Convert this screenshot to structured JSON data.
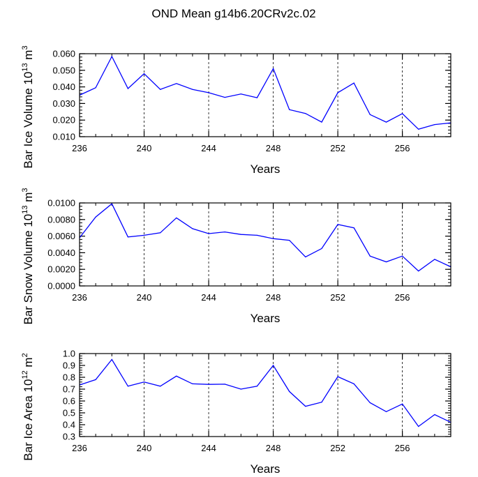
{
  "title": "OND Mean g14b6.20CRv2c.02",
  "chart_data": [
    {
      "type": "line",
      "ylabel_main": "Bar Ice Volume 10",
      "ylabel_exp": "13",
      "ylabel_unit": " m",
      "ylabel_unit_exp": "3",
      "xlabel": "Years",
      "xlim": [
        236,
        259
      ],
      "ylim": [
        0.01,
        0.06
      ],
      "yticks": [
        0.01,
        0.02,
        0.03,
        0.04,
        0.05,
        0.06
      ],
      "ytick_labels": [
        "0.010",
        "0.020",
        "0.030",
        "0.040",
        "0.050",
        "0.060"
      ],
      "xticks": [
        236,
        240,
        244,
        248,
        252,
        256
      ],
      "xtick_labels": [
        "236",
        "240",
        "244",
        "248",
        "252",
        "256"
      ],
      "gridlines_x": [
        240,
        244,
        248,
        252,
        256
      ],
      "series": [
        {
          "name": "Bar Ice Volume",
          "color": "#0000ff",
          "x": [
            236,
            237,
            238,
            239,
            240,
            241,
            242,
            243,
            244,
            245,
            246,
            247,
            248,
            249,
            250,
            251,
            252,
            253,
            254,
            255,
            256,
            257,
            258,
            259
          ],
          "values": [
            0.035,
            0.0395,
            0.0583,
            0.039,
            0.048,
            0.0385,
            0.042,
            0.0385,
            0.0365,
            0.0337,
            0.0357,
            0.0335,
            0.051,
            0.0263,
            0.024,
            0.0188,
            0.0365,
            0.0423,
            0.0233,
            0.0188,
            0.0239,
            0.0145,
            0.0173,
            0.0183
          ]
        }
      ]
    },
    {
      "type": "line",
      "ylabel_main": "Bar Snow Volume 10",
      "ylabel_exp": "13",
      "ylabel_unit": " m",
      "ylabel_unit_exp": "3",
      "xlabel": "Years",
      "xlim": [
        236,
        259
      ],
      "ylim": [
        0.0,
        0.01
      ],
      "yticks": [
        0.0,
        0.002,
        0.004,
        0.006,
        0.008,
        0.01
      ],
      "ytick_labels": [
        "0.0000",
        "0.0020",
        "0.0040",
        "0.0060",
        "0.0080",
        "0.0100"
      ],
      "xticks": [
        236,
        240,
        244,
        248,
        252,
        256
      ],
      "xtick_labels": [
        "236",
        "240",
        "244",
        "248",
        "252",
        "256"
      ],
      "gridlines_x": [
        240,
        244,
        248,
        252,
        256
      ],
      "series": [
        {
          "name": "Bar Snow Volume",
          "color": "#0000ff",
          "x": [
            236,
            237,
            238,
            239,
            240,
            241,
            242,
            243,
            244,
            245,
            246,
            247,
            248,
            249,
            250,
            251,
            252,
            253,
            254,
            255,
            256,
            257,
            258,
            259
          ],
          "values": [
            0.0058,
            0.0083,
            0.0099,
            0.0059,
            0.0061,
            0.0064,
            0.0082,
            0.0069,
            0.0063,
            0.0065,
            0.0062,
            0.0061,
            0.0057,
            0.0055,
            0.0035,
            0.0045,
            0.0074,
            0.007,
            0.0036,
            0.0029,
            0.0036,
            0.0018,
            0.0032,
            0.0023
          ]
        }
      ]
    },
    {
      "type": "line",
      "ylabel_main": "Bar Ice Area 10",
      "ylabel_exp": "12",
      "ylabel_unit": " m",
      "ylabel_unit_exp": "2",
      "xlabel": "Years",
      "xlim": [
        236,
        259
      ],
      "ylim": [
        0.3,
        1.0
      ],
      "yticks": [
        0.3,
        0.4,
        0.5,
        0.6,
        0.7,
        0.8,
        0.9,
        1.0
      ],
      "ytick_labels": [
        "0.3",
        "0.4",
        "0.5",
        "0.6",
        "0.7",
        "0.8",
        "0.9",
        "1.0"
      ],
      "xticks": [
        236,
        240,
        244,
        248,
        252,
        256
      ],
      "xtick_labels": [
        "236",
        "240",
        "244",
        "248",
        "252",
        "256"
      ],
      "gridlines_x": [
        240,
        244,
        248,
        252,
        256
      ],
      "series": [
        {
          "name": "Bar Ice Area",
          "color": "#0000ff",
          "x": [
            236,
            237,
            238,
            239,
            240,
            241,
            242,
            243,
            244,
            245,
            246,
            247,
            248,
            249,
            250,
            251,
            252,
            253,
            254,
            255,
            256,
            257,
            258,
            259
          ],
          "values": [
            0.735,
            0.78,
            0.95,
            0.725,
            0.76,
            0.725,
            0.81,
            0.745,
            0.74,
            0.742,
            0.7,
            0.725,
            0.9,
            0.68,
            0.555,
            0.59,
            0.805,
            0.745,
            0.585,
            0.51,
            0.575,
            0.385,
            0.485,
            0.42
          ]
        }
      ]
    }
  ]
}
